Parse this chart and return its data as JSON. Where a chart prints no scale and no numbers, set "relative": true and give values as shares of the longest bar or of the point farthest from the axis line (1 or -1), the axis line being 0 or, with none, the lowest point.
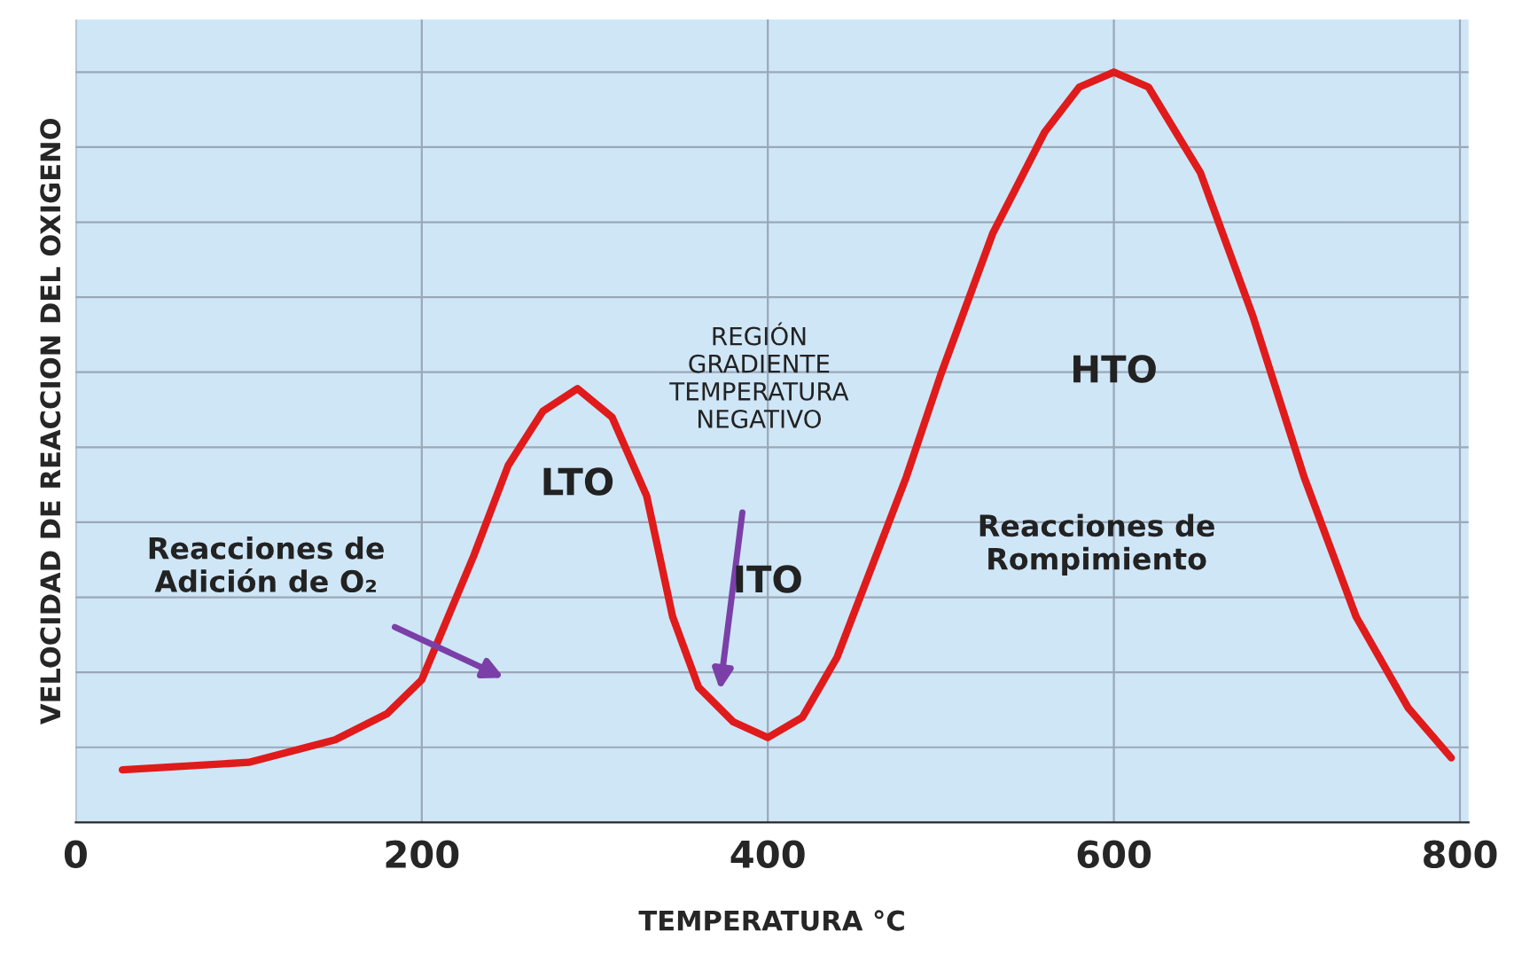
{
  "chart_data": {
    "type": "line",
    "relative": true,
    "xlabel": "TEMPERATURA °C",
    "ylabel": "VELOCIDAD DE REACCION DEL OXIGENO",
    "xlim": [
      0,
      805
    ],
    "xticks": [
      0,
      200,
      400,
      600,
      800
    ],
    "grid": true,
    "line_style": "solid",
    "series": [
      {
        "color": "#e01b1b",
        "x": [
          27,
          100,
          150,
          180,
          200,
          230,
          250,
          270,
          290,
          310,
          330,
          345,
          360,
          380,
          400,
          420,
          440,
          460,
          480,
          500,
          530,
          560,
          580,
          600,
          620,
          650,
          680,
          710,
          740,
          770,
          795
        ],
        "values": [
          0.07,
          0.08,
          0.11,
          0.145,
          0.19,
          0.355,
          0.476,
          0.548,
          0.578,
          0.54,
          0.435,
          0.274,
          0.18,
          0.134,
          0.113,
          0.14,
          0.22,
          0.34,
          0.46,
          0.597,
          0.785,
          0.92,
          0.98,
          1.0,
          0.98,
          0.866,
          0.677,
          0.46,
          0.274,
          0.153,
          0.086
        ]
      }
    ],
    "annotations": [
      "Reacciones de\nAdición de O₂",
      "REGIÓN\nGRADIENTE\nTEMPERATURA\nNEGATIVO",
      "LTO",
      "ITO",
      "HTO",
      "Reacciones de\nRompimiento"
    ]
  }
}
